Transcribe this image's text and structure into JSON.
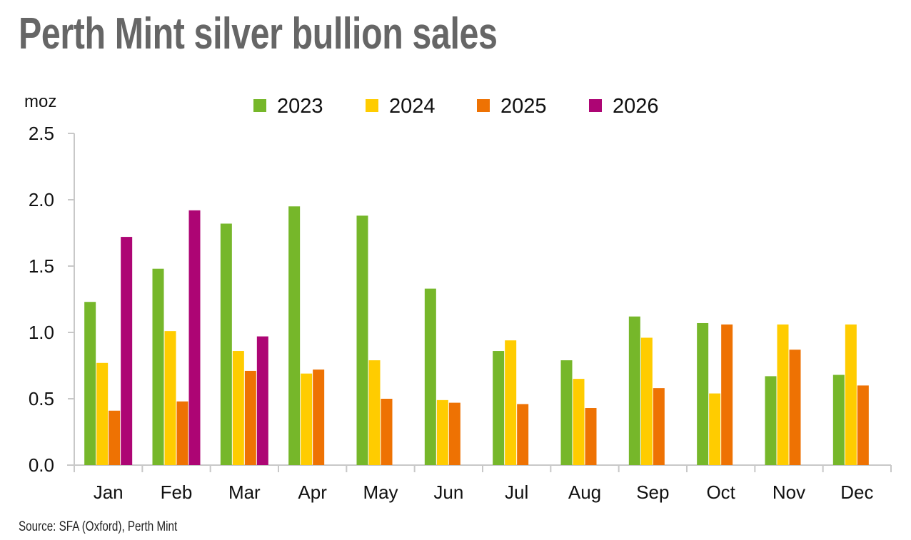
{
  "title": "Perth Mint silver bullion sales",
  "source": "Source: SFA (Oxford), Perth Mint",
  "chart_data": {
    "type": "bar",
    "title": "Perth Mint silver bullion sales",
    "ylabel": "moz",
    "xlabel": "",
    "ylim": [
      0,
      2.5
    ],
    "yticks": [
      "0.0",
      "0.5",
      "1.0",
      "1.5",
      "2.0",
      "2.5"
    ],
    "grid": false,
    "legend_position": "top",
    "categories": [
      "Jan",
      "Feb",
      "Mar",
      "Apr",
      "May",
      "Jun",
      "Jul",
      "Aug",
      "Sep",
      "Oct",
      "Nov",
      "Dec"
    ],
    "series": [
      {
        "name": "2023",
        "color": "#76b72a",
        "values": [
          1.23,
          1.48,
          1.82,
          1.95,
          1.88,
          1.33,
          0.86,
          0.79,
          1.12,
          1.07,
          0.67,
          0.68
        ]
      },
      {
        "name": "2024",
        "color": "#ffcc00",
        "values": [
          0.77,
          1.01,
          0.86,
          0.69,
          0.79,
          0.49,
          0.94,
          0.65,
          0.96,
          0.54,
          1.06,
          1.06
        ]
      },
      {
        "name": "2025",
        "color": "#ee7203",
        "values": [
          0.41,
          0.48,
          0.71,
          0.72,
          0.5,
          0.47,
          0.46,
          0.43,
          0.58,
          1.06,
          0.87,
          0.6
        ]
      },
      {
        "name": "2026",
        "color": "#ad0574",
        "values": [
          1.72,
          1.92,
          0.97,
          null,
          null,
          null,
          null,
          null,
          null,
          null,
          null,
          null
        ]
      }
    ]
  }
}
